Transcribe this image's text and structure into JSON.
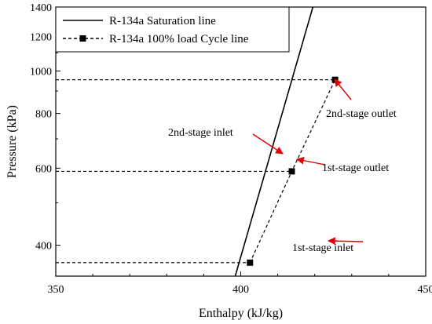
{
  "chart_data": {
    "type": "line",
    "xlabel": "Enthalpy (kJ/kg)",
    "ylabel": "Pressure (kPa)",
    "xlim": [
      350,
      450
    ],
    "ylim": [
      340,
      1400
    ],
    "yscale": "log",
    "x_ticks": [
      350,
      400,
      450
    ],
    "y_ticks": [
      400,
      600,
      800,
      1000,
      1200,
      1400
    ],
    "grid": false,
    "legend_position": "top-left",
    "series": [
      {
        "name": "R-134a Saturation line",
        "style": "solid",
        "color": "#000000",
        "points": [
          [
            398.5,
            340
          ],
          [
            419.5,
            1400
          ]
        ]
      },
      {
        "name": "R-134a 100% load Cycle line",
        "style": "dashed",
        "marker": "square",
        "color": "#000000",
        "points": [
          [
            402.5,
            365
          ],
          [
            413.8,
            590
          ],
          [
            425.5,
            955
          ]
        ]
      }
    ],
    "reference_lines": [
      {
        "style": "dashed",
        "y": 365,
        "x_range": [
          350,
          402.5
        ]
      },
      {
        "style": "dashed",
        "y": 590,
        "x_range": [
          350,
          413.8
        ]
      },
      {
        "style": "dashed",
        "y": 955,
        "x_range": [
          350,
          425.5
        ]
      }
    ],
    "annotations": [
      {
        "text": "1st-stage inlet",
        "target": [
          402.5,
          365
        ],
        "arrow_color": "#e00000"
      },
      {
        "text": "1st-stage outlet",
        "target": [
          413.8,
          590
        ],
        "arrow_color": "#e00000"
      },
      {
        "text": "2nd-stage inlet",
        "target": [
          411.5,
          590
        ],
        "arrow_color": "#e00000"
      },
      {
        "text": "2nd-stage outlet",
        "target": [
          425.5,
          955
        ],
        "arrow_color": "#e00000"
      }
    ]
  }
}
